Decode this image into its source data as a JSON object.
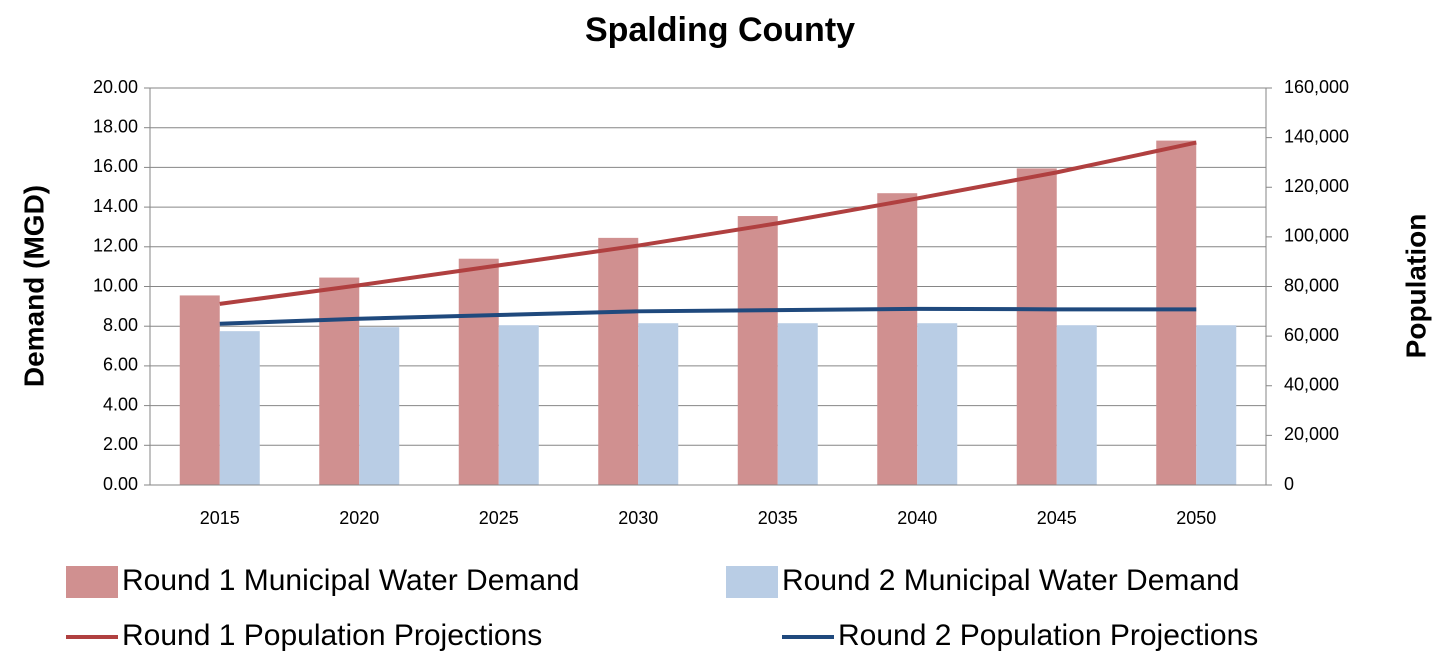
{
  "chart_data": {
    "type": "bar",
    "title": "Spalding County",
    "ylabel": "Demand (MGD)",
    "y2label": "Population",
    "categories": [
      "2015",
      "2020",
      "2025",
      "2030",
      "2035",
      "2040",
      "2045",
      "2050"
    ],
    "series": [
      {
        "name": "Round 1 Municipal Water Demand",
        "color": "#d09090",
        "values": [
          9.55,
          10.45,
          11.4,
          12.45,
          13.55,
          14.7,
          15.95,
          17.35
        ]
      },
      {
        "name": "Round 2 Municipal Water Demand",
        "color": "#b9cde5",
        "values": [
          7.75,
          7.95,
          8.05,
          8.15,
          8.15,
          8.15,
          8.05,
          8.05
        ]
      },
      {
        "name": "Round 1 Population Projections",
        "color": "#b04040",
        "type": "line",
        "axis": "y2",
        "values": [
          73000,
          80500,
          88500,
          96500,
          105500,
          115500,
          126000,
          138000
        ]
      },
      {
        "name": "Round 2 Population Projections",
        "color": "#1f497d",
        "type": "line",
        "axis": "y2",
        "values": [
          65000,
          67000,
          68500,
          70000,
          70500,
          71000,
          70800,
          70800
        ]
      }
    ],
    "ylim": [
      0,
      20
    ],
    "yticks": [
      {
        "value": 0,
        "label": "0.00"
      },
      {
        "value": 2,
        "label": "2.00"
      },
      {
        "value": 4,
        "label": "4.00"
      },
      {
        "value": 6,
        "label": "6.00"
      },
      {
        "value": 8,
        "label": "8.00"
      },
      {
        "value": 10,
        "label": "10.00"
      },
      {
        "value": 12,
        "label": "12.00"
      },
      {
        "value": 14,
        "label": "14.00"
      },
      {
        "value": 16,
        "label": "16.00"
      },
      {
        "value": 18,
        "label": "18.00"
      },
      {
        "value": 20,
        "label": "20.00"
      }
    ],
    "y2lim": [
      0,
      160000
    ],
    "y2ticks": [
      0,
      {
        "value": 20000,
        "label": "20,000"
      },
      {
        "value": 40000,
        "label": "40,000"
      },
      {
        "value": 60000,
        "label": "60,000"
      },
      {
        "value": 80000,
        "label": "80,000"
      },
      {
        "value": 100000,
        "label": "100,000"
      },
      {
        "value": 120000,
        "label": "120,000"
      },
      {
        "value": 140000,
        "label": "140,000"
      },
      {
        "value": 160000,
        "label": "160,000"
      }
    ],
    "grid": true
  }
}
